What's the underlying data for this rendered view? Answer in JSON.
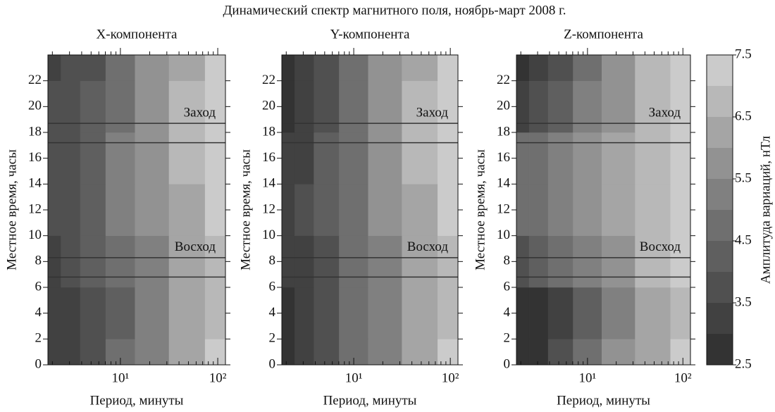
{
  "title": "Динамический спектр магнитного поля, ноябрь-март 2008 г.",
  "colorbar": {
    "label": "Амплитуда вариаций, нТл",
    "levels": [
      2.5,
      3,
      3.5,
      4,
      4.5,
      5,
      5.5,
      6,
      6.5,
      7,
      7.5
    ],
    "colors": [
      "#333333",
      "#414141",
      "#505050",
      "#5f5f5f",
      "#6f6f6f",
      "#808080",
      "#929292",
      "#a5a5a5",
      "#b8b8b8",
      "#cbcbcb"
    ],
    "ticks": [
      2.5,
      3.5,
      4.5,
      5.5,
      6.5,
      7.5
    ]
  },
  "chart_data": [
    {
      "type": "contour",
      "title": "X-компонента",
      "xlabel": "Период, минуты",
      "ylabel": "Местное время, часы",
      "xscale": "log",
      "xlim": [
        1.8,
        120
      ],
      "ylim": [
        0,
        24
      ],
      "xticks": [
        {
          "value": 10,
          "label": "10¹"
        },
        {
          "value": 100,
          "label": "10²"
        }
      ],
      "xminorticks": [
        2,
        3,
        4,
        5,
        6,
        7,
        8,
        9,
        20,
        30,
        40,
        50,
        60,
        70,
        80,
        90
      ],
      "yticks": [
        0,
        2,
        4,
        6,
        8,
        10,
        12,
        14,
        16,
        18,
        20,
        22
      ],
      "hlines": [
        6.8,
        8.3,
        17.2,
        18.7
      ],
      "sunrise_label": "Восход",
      "sunset_label": "Заход",
      "x": [
        2,
        3,
        5,
        10,
        20,
        50,
        110
      ],
      "y": [
        0,
        4,
        8,
        12,
        16,
        20,
        24
      ],
      "z": [
        [
          3.2,
          3.3,
          3.8,
          4.6,
          5.4,
          6.3,
          7.0
        ],
        [
          3.0,
          3.1,
          3.6,
          4.4,
          5.2,
          6.0,
          6.6
        ],
        [
          3.4,
          3.6,
          4.0,
          4.7,
          5.4,
          6.1,
          6.7
        ],
        [
          3.8,
          3.9,
          4.3,
          5.0,
          5.7,
          6.4,
          7.0
        ],
        [
          3.8,
          3.9,
          4.3,
          5.0,
          5.7,
          6.5,
          7.1
        ],
        [
          3.6,
          3.8,
          4.2,
          4.9,
          5.7,
          6.5,
          7.1
        ],
        [
          3.3,
          3.5,
          3.9,
          4.7,
          5.5,
          6.4,
          7.0
        ]
      ]
    },
    {
      "type": "contour",
      "title": "Y-компонента",
      "xlabel": "Период, минуты",
      "ylabel": "Местное время, часы",
      "xscale": "log",
      "xlim": [
        1.8,
        120
      ],
      "ylim": [
        0,
        24
      ],
      "xticks": [
        {
          "value": 10,
          "label": "10¹"
        },
        {
          "value": 100,
          "label": "10²"
        }
      ],
      "xminorticks": [
        2,
        3,
        4,
        5,
        6,
        7,
        8,
        9,
        20,
        30,
        40,
        50,
        60,
        70,
        80,
        90
      ],
      "yticks": [
        0,
        2,
        4,
        6,
        8,
        10,
        12,
        14,
        16,
        18,
        20,
        22
      ],
      "hlines": [
        6.8,
        8.3,
        17.2,
        18.7
      ],
      "sunrise_label": "Восход",
      "sunset_label": "Заход",
      "x": [
        2,
        3,
        5,
        10,
        20,
        50,
        110
      ],
      "y": [
        0,
        4,
        8,
        12,
        16,
        20,
        24
      ],
      "z": [
        [
          2.8,
          3.0,
          3.8,
          4.6,
          5.4,
          6.2,
          7.0
        ],
        [
          2.8,
          3.0,
          3.7,
          4.5,
          5.3,
          6.1,
          6.8
        ],
        [
          3.1,
          3.3,
          3.9,
          4.6,
          5.4,
          6.2,
          6.9
        ],
        [
          3.3,
          3.5,
          4.1,
          4.8,
          5.6,
          6.4,
          7.0
        ],
        [
          3.2,
          3.4,
          4.1,
          4.8,
          5.6,
          6.5,
          7.1
        ],
        [
          2.9,
          3.1,
          3.9,
          4.7,
          5.6,
          6.5,
          7.1
        ],
        [
          2.8,
          3.0,
          3.8,
          4.6,
          5.5,
          6.4,
          7.1
        ]
      ]
    },
    {
      "type": "contour",
      "title": "Z-компонента",
      "xlabel": "Период, минуты",
      "ylabel": "Местное время, часы",
      "xscale": "log",
      "xlim": [
        1.8,
        120
      ],
      "ylim": [
        0,
        24
      ],
      "xticks": [
        {
          "value": 10,
          "label": "10¹"
        },
        {
          "value": 100,
          "label": "10²"
        }
      ],
      "xminorticks": [
        2,
        3,
        4,
        5,
        6,
        7,
        8,
        9,
        20,
        30,
        40,
        50,
        60,
        70,
        80,
        90
      ],
      "yticks": [
        0,
        2,
        4,
        6,
        8,
        10,
        12,
        14,
        16,
        18,
        20,
        22
      ],
      "hlines": [
        6.8,
        8.3,
        17.2,
        18.7
      ],
      "sunrise_label": "Восход",
      "sunset_label": "Заход",
      "x": [
        2,
        3,
        5,
        10,
        20,
        50,
        110
      ],
      "y": [
        0,
        4,
        8,
        12,
        16,
        20,
        24
      ],
      "z": [
        [
          2.7,
          2.9,
          3.6,
          4.6,
          5.5,
          6.4,
          7.0
        ],
        [
          2.6,
          2.8,
          3.4,
          4.4,
          5.3,
          6.2,
          6.9
        ],
        [
          3.8,
          4.0,
          4.5,
          5.2,
          5.9,
          6.6,
          7.1
        ],
        [
          4.5,
          4.7,
          5.1,
          5.6,
          6.2,
          6.8,
          7.3
        ],
        [
          4.6,
          4.8,
          5.2,
          5.7,
          6.3,
          6.9,
          7.4
        ],
        [
          3.2,
          3.5,
          4.2,
          5.0,
          5.8,
          6.6,
          7.2
        ],
        [
          2.8,
          3.0,
          3.8,
          4.8,
          5.7,
          6.5,
          7.2
        ]
      ]
    }
  ]
}
